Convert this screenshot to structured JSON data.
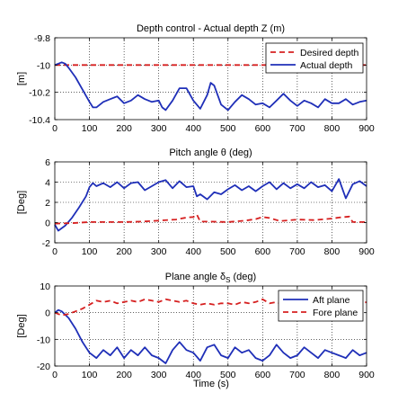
{
  "figure": {
    "xlabel": "Time (s)"
  },
  "chart_data": [
    {
      "type": "line",
      "title": "Depth control - Actual depth Z (m)",
      "xlabel": "",
      "ylabel": "[m]",
      "xlim": [
        0,
        900
      ],
      "ylim": [
        -10.4,
        -9.8
      ],
      "xticks": [
        0,
        100,
        200,
        300,
        400,
        500,
        600,
        700,
        800,
        900
      ],
      "yticks": [
        -10.4,
        -10.2,
        -10,
        -9.8
      ],
      "yticklabels": [
        "-10.4",
        "-10.2",
        "-10",
        "-9.8"
      ],
      "grid": true,
      "legend_position": "top-right",
      "series": [
        {
          "name": "Desired depth",
          "color": "#d62020",
          "style": "dashed",
          "x": [
            0,
            900
          ],
          "y": [
            -10,
            -10
          ]
        },
        {
          "name": "Actual depth",
          "color": "#1f2fb8",
          "style": "solid",
          "x": [
            0,
            10,
            20,
            30,
            40,
            60,
            80,
            100,
            110,
            120,
            140,
            160,
            180,
            200,
            220,
            240,
            260,
            280,
            300,
            310,
            320,
            340,
            360,
            380,
            400,
            420,
            440,
            450,
            460,
            480,
            500,
            520,
            540,
            560,
            580,
            600,
            620,
            640,
            660,
            680,
            700,
            720,
            740,
            760,
            780,
            800,
            820,
            840,
            860,
            880,
            900
          ],
          "y": [
            -10.0,
            -9.99,
            -9.98,
            -9.99,
            -10.02,
            -10.09,
            -10.18,
            -10.27,
            -10.31,
            -10.31,
            -10.27,
            -10.25,
            -10.23,
            -10.28,
            -10.26,
            -10.22,
            -10.25,
            -10.27,
            -10.26,
            -10.31,
            -10.33,
            -10.26,
            -10.17,
            -10.17,
            -10.26,
            -10.32,
            -10.22,
            -10.13,
            -10.15,
            -10.29,
            -10.33,
            -10.27,
            -10.22,
            -10.25,
            -10.29,
            -10.28,
            -10.31,
            -10.26,
            -10.21,
            -10.26,
            -10.3,
            -10.26,
            -10.28,
            -10.31,
            -10.25,
            -10.28,
            -10.28,
            -10.25,
            -10.29,
            -10.27,
            -10.26
          ]
        }
      ]
    },
    {
      "type": "line",
      "title": "Pitch angle θ (deg)",
      "xlabel": "",
      "ylabel": "[Deg]",
      "xlim": [
        0,
        900
      ],
      "ylim": [
        -2,
        6
      ],
      "xticks": [
        0,
        100,
        200,
        300,
        400,
        500,
        600,
        700,
        800,
        900
      ],
      "yticks": [
        -2,
        0,
        2,
        4,
        6
      ],
      "yticklabels": [
        "-2",
        "0",
        "2",
        "4",
        "6"
      ],
      "grid": true,
      "legend_position": "",
      "series": [
        {
          "name": "",
          "color": "#1f2fb8",
          "style": "solid",
          "x": [
            0,
            10,
            30,
            50,
            70,
            90,
            100,
            110,
            120,
            140,
            160,
            180,
            200,
            220,
            240,
            260,
            280,
            300,
            320,
            340,
            360,
            380,
            400,
            410,
            420,
            440,
            460,
            480,
            500,
            520,
            540,
            560,
            580,
            600,
            620,
            640,
            660,
            680,
            700,
            720,
            740,
            760,
            780,
            800,
            820,
            840,
            860,
            880,
            900
          ],
          "y": [
            -0.2,
            -0.8,
            -0.3,
            0.5,
            1.5,
            2.6,
            3.5,
            3.9,
            3.6,
            3.9,
            3.5,
            4.0,
            3.4,
            3.9,
            4.0,
            3.2,
            3.6,
            4.0,
            4.2,
            3.4,
            4.1,
            3.5,
            3.6,
            2.6,
            2.8,
            2.3,
            3.0,
            2.8,
            3.3,
            3.7,
            3.2,
            3.6,
            3.1,
            3.6,
            4.0,
            3.3,
            3.9,
            3.4,
            3.8,
            3.4,
            4.0,
            3.5,
            3.7,
            3.1,
            4.3,
            2.4,
            3.8,
            4.1,
            3.6
          ]
        },
        {
          "name": "",
          "color": "#d62020",
          "style": "dashed",
          "x": [
            0,
            50,
            100,
            150,
            200,
            250,
            300,
            350,
            380,
            400,
            410,
            420,
            450,
            500,
            550,
            580,
            600,
            620,
            650,
            700,
            750,
            800,
            820,
            850,
            860,
            880,
            900
          ],
          "y": [
            -0.1,
            -0.05,
            0.05,
            0.05,
            0.05,
            0.1,
            0.2,
            0.3,
            0.5,
            0.55,
            0.8,
            0.1,
            0.1,
            0.05,
            0.2,
            0.35,
            0.55,
            0.45,
            0.15,
            0.3,
            0.25,
            0.4,
            0.5,
            0.6,
            0.05,
            0.05,
            0.05
          ]
        }
      ]
    },
    {
      "type": "line",
      "title": "Plane angle δ",
      "title_sub": "S",
      "title_suffix": " (deg)",
      "xlabel": "Time (s)",
      "ylabel": "[Deg]",
      "xlim": [
        0,
        900
      ],
      "ylim": [
        -20,
        10
      ],
      "xticks": [
        0,
        100,
        200,
        300,
        400,
        500,
        600,
        700,
        800,
        900
      ],
      "yticks": [
        -20,
        -10,
        0,
        10
      ],
      "yticklabels": [
        "-20",
        "-10",
        "0",
        "10"
      ],
      "grid": true,
      "legend_position": "top-right",
      "series": [
        {
          "name": "Aft plane",
          "color": "#1f2fb8",
          "style": "solid",
          "x": [
            0,
            10,
            20,
            40,
            60,
            80,
            100,
            120,
            140,
            160,
            180,
            200,
            220,
            240,
            260,
            280,
            300,
            320,
            340,
            360,
            380,
            400,
            420,
            440,
            460,
            480,
            500,
            520,
            540,
            560,
            580,
            600,
            620,
            640,
            660,
            680,
            700,
            720,
            740,
            760,
            780,
            800,
            820,
            840,
            860,
            880,
            900
          ],
          "y": [
            0,
            1,
            0.5,
            -2,
            -6,
            -11,
            -15,
            -17,
            -14,
            -16,
            -13,
            -17,
            -14,
            -16,
            -13,
            -16,
            -17,
            -19,
            -14,
            -11,
            -14,
            -15,
            -18,
            -13,
            -12,
            -16,
            -17,
            -13,
            -15,
            -14,
            -17,
            -18,
            -16,
            -12,
            -15,
            -17,
            -16,
            -13,
            -15,
            -17,
            -14,
            -15,
            -16,
            -17,
            -14,
            -16,
            -15
          ]
        },
        {
          "name": "Fore plane",
          "color": "#d62020",
          "style": "dashed",
          "x": [
            0,
            20,
            40,
            60,
            80,
            100,
            120,
            140,
            160,
            180,
            200,
            220,
            240,
            260,
            280,
            300,
            320,
            340,
            360,
            380,
            400,
            420,
            440,
            460,
            480,
            500,
            520,
            540,
            560,
            580,
            600,
            620,
            640,
            660,
            680,
            700,
            720,
            740,
            760,
            780,
            800,
            820,
            840,
            860,
            880,
            900
          ],
          "y": [
            0,
            -1,
            -0.5,
            0.5,
            1.5,
            3,
            4.5,
            4,
            4.5,
            3.5,
            4,
            4.5,
            4,
            5,
            4.5,
            4,
            5,
            4.5,
            4,
            4.5,
            3.5,
            3,
            3.5,
            3,
            3.5,
            3.5,
            3,
            4,
            3.5,
            4,
            5,
            3.5,
            4,
            3,
            3.5,
            3,
            4,
            3.5,
            3.5,
            3,
            3.5,
            3,
            2.5,
            3.5,
            3,
            4
          ]
        }
      ]
    }
  ]
}
